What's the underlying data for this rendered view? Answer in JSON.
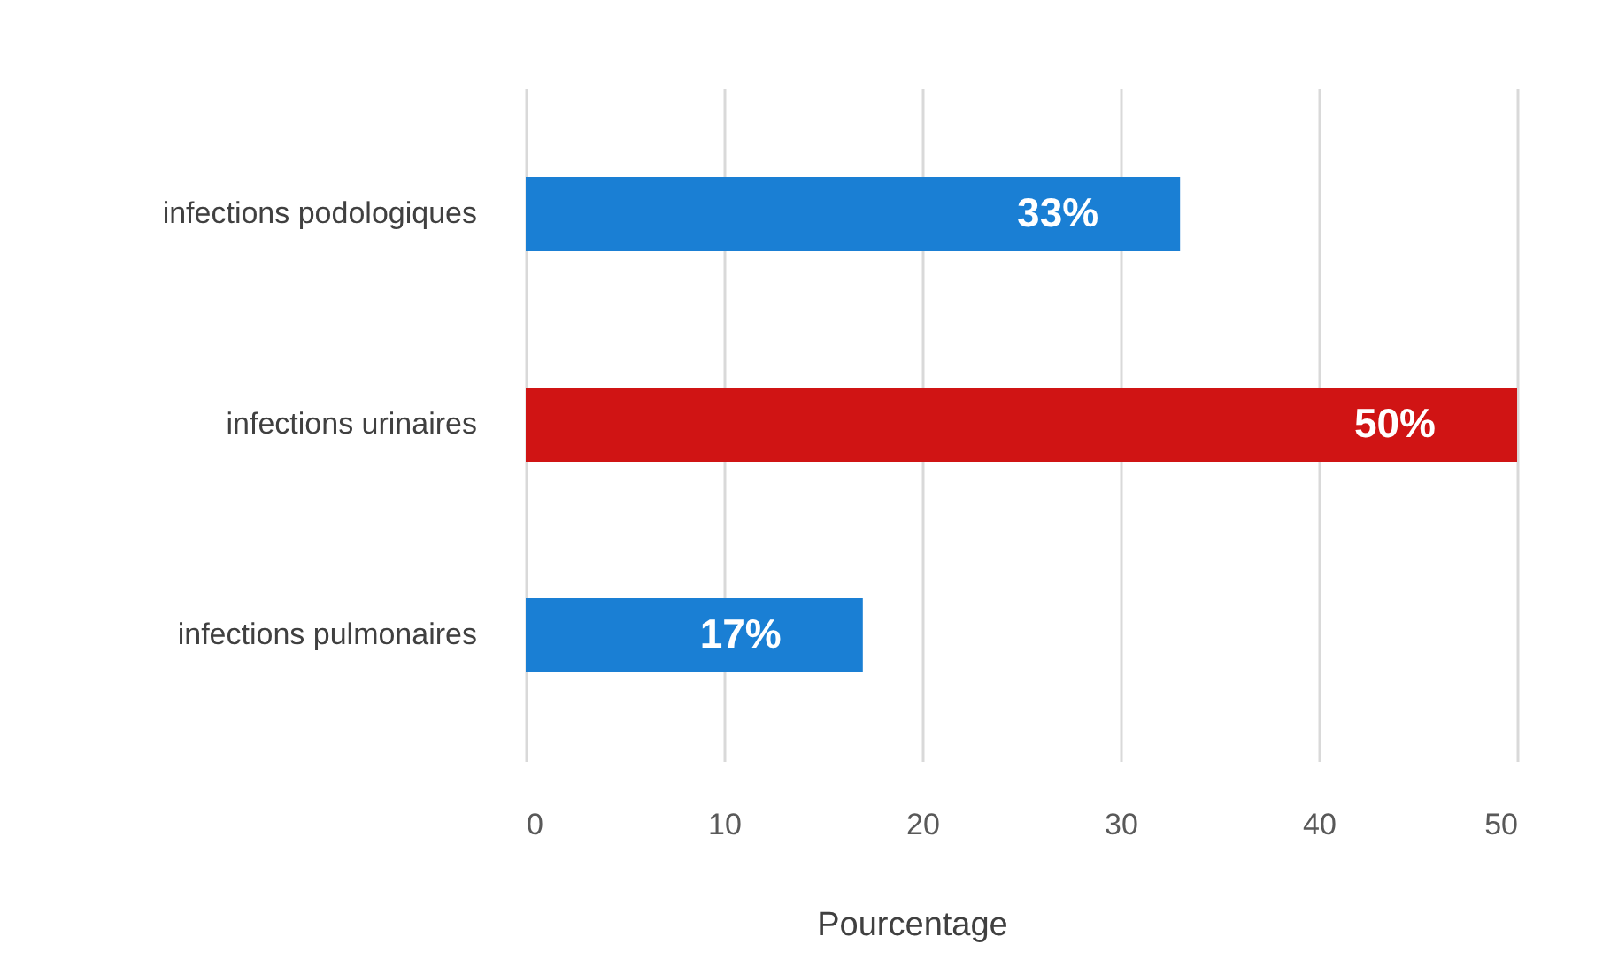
{
  "chart_data": {
    "type": "bar",
    "orientation": "horizontal",
    "xlabel": "Pourcentage",
    "categories": [
      "infections podologiques",
      "infections urinaires",
      "infections pulmonaires"
    ],
    "values": [
      33,
      50,
      17
    ],
    "colors": [
      "#1a7fd4",
      "#d01414",
      "#1a7fd4"
    ],
    "value_labels": [
      "33%",
      "50%",
      "17%"
    ],
    "xlim": [
      0,
      50
    ],
    "xticks": [
      0,
      10,
      20,
      30,
      40,
      50
    ],
    "grid": "x"
  }
}
